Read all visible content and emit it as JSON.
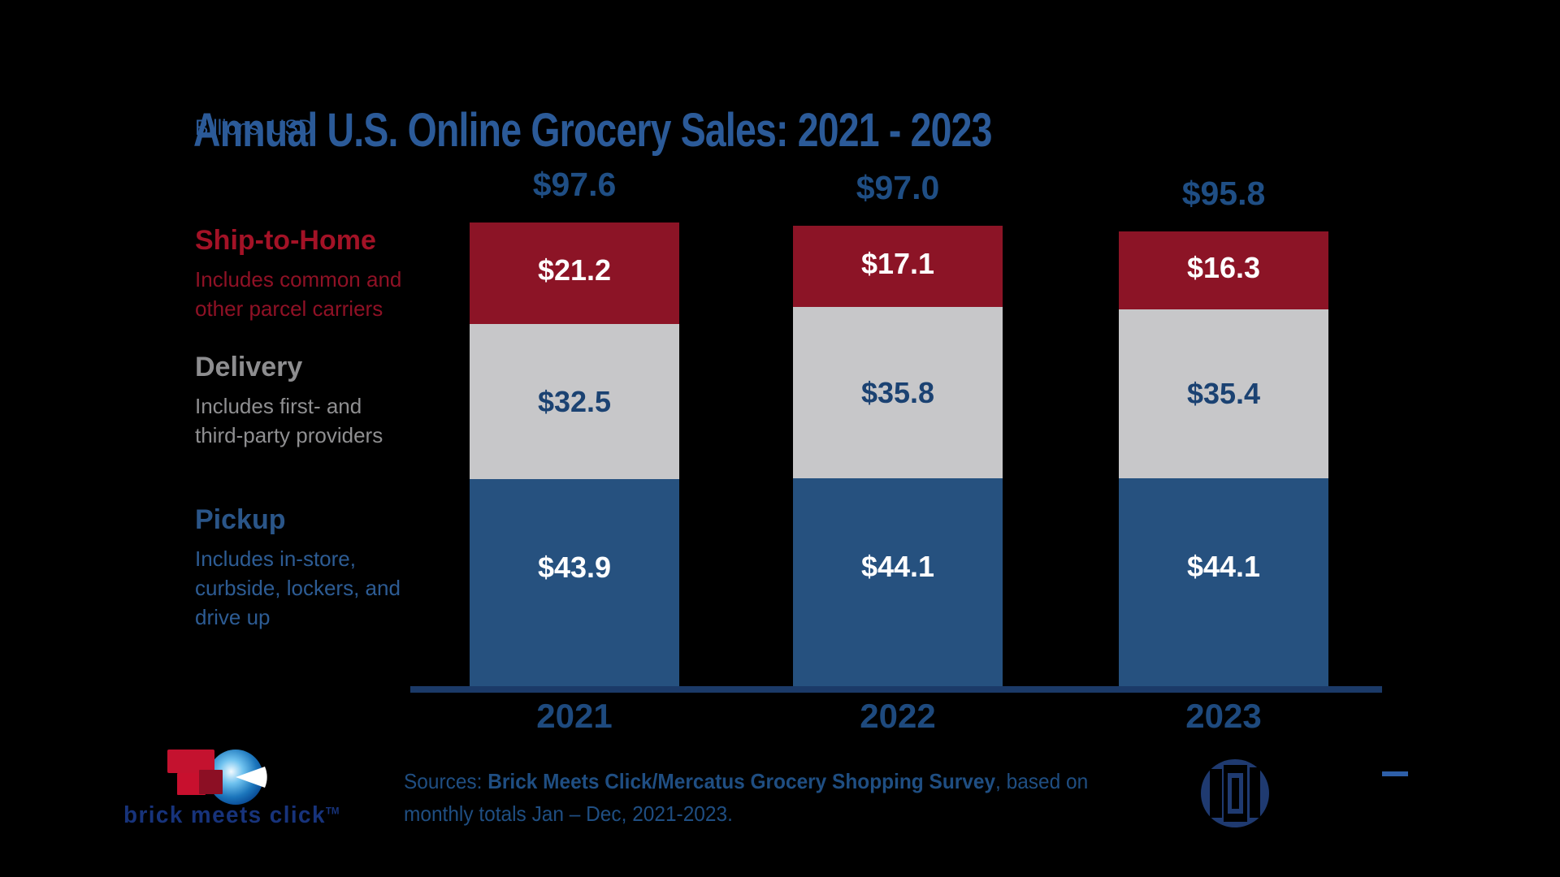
{
  "header": {
    "title": "Annual U.S. Online Grocery Sales: 2021 - 2023",
    "subtitle": "Billions, USD"
  },
  "legend": [
    {
      "heading": "Ship-to-Home",
      "desc_lines": [
        "Includes common and",
        "other parcel carriers"
      ]
    },
    {
      "heading": "Delivery",
      "desc_lines": [
        "Includes first- and",
        "third-party providers"
      ]
    },
    {
      "heading": "Pickup",
      "desc_lines": [
        "Includes in-store,",
        "curbside, lockers, and",
        "drive up"
      ]
    }
  ],
  "chart_data": {
    "type": "bar",
    "stacked": true,
    "title": "Annual U.S. Online Grocery Sales: 2021 - 2023",
    "ylabel": "Billions, USD",
    "grid": false,
    "legend_position": "left",
    "categories": [
      "2021",
      "2022",
      "2023"
    ],
    "totals": [
      "$97.6",
      "$97.0",
      "$95.8"
    ],
    "total_values": [
      97.6,
      97.0,
      95.8
    ],
    "series": [
      {
        "name": "Ship-to-Home",
        "values": [
          21.2,
          17.1,
          16.3
        ],
        "labels": [
          "$21.2",
          "$17.1",
          "$16.3"
        ],
        "color": "#8C1426",
        "label_color": "#FFFFFF"
      },
      {
        "name": "Delivery",
        "values": [
          32.5,
          35.8,
          35.4
        ],
        "labels": [
          "$32.5",
          "$35.8",
          "$35.4"
        ],
        "color": "#C7C7C9",
        "label_color": "#1B4272"
      },
      {
        "name": "Pickup",
        "values": [
          43.9,
          44.1,
          44.1
        ],
        "labels": [
          "$43.9",
          "$44.1",
          "$44.1"
        ],
        "color": "#26517F",
        "label_color": "#FFFFFF"
      }
    ]
  },
  "source": {
    "prefix": "Sources: ",
    "bold": "Brick Meets Click/Mercatus Grocery Shopping Survey",
    "suffix": ", based on",
    "line2": "monthly totals Jan – Dec, 2021-2023."
  },
  "footer": {
    "bmc_logo_text": "brick meets click",
    "bmc_trademark": "TM"
  },
  "colors": {
    "background": "#000000",
    "title_navy": "#2B5A98",
    "value_navy": "#1E4A7E",
    "axis_navy": "#1B3A68",
    "ship_red": "#8C1426",
    "delivery_gray": "#C7C7C9",
    "pickup_blue": "#26517F",
    "legend_red": "#A31226",
    "legend_gray": "#8D8D8F",
    "legend_blue": "#2A5588",
    "source_navy": "#1F4E82",
    "bmc_text_navy": "#17337B"
  }
}
